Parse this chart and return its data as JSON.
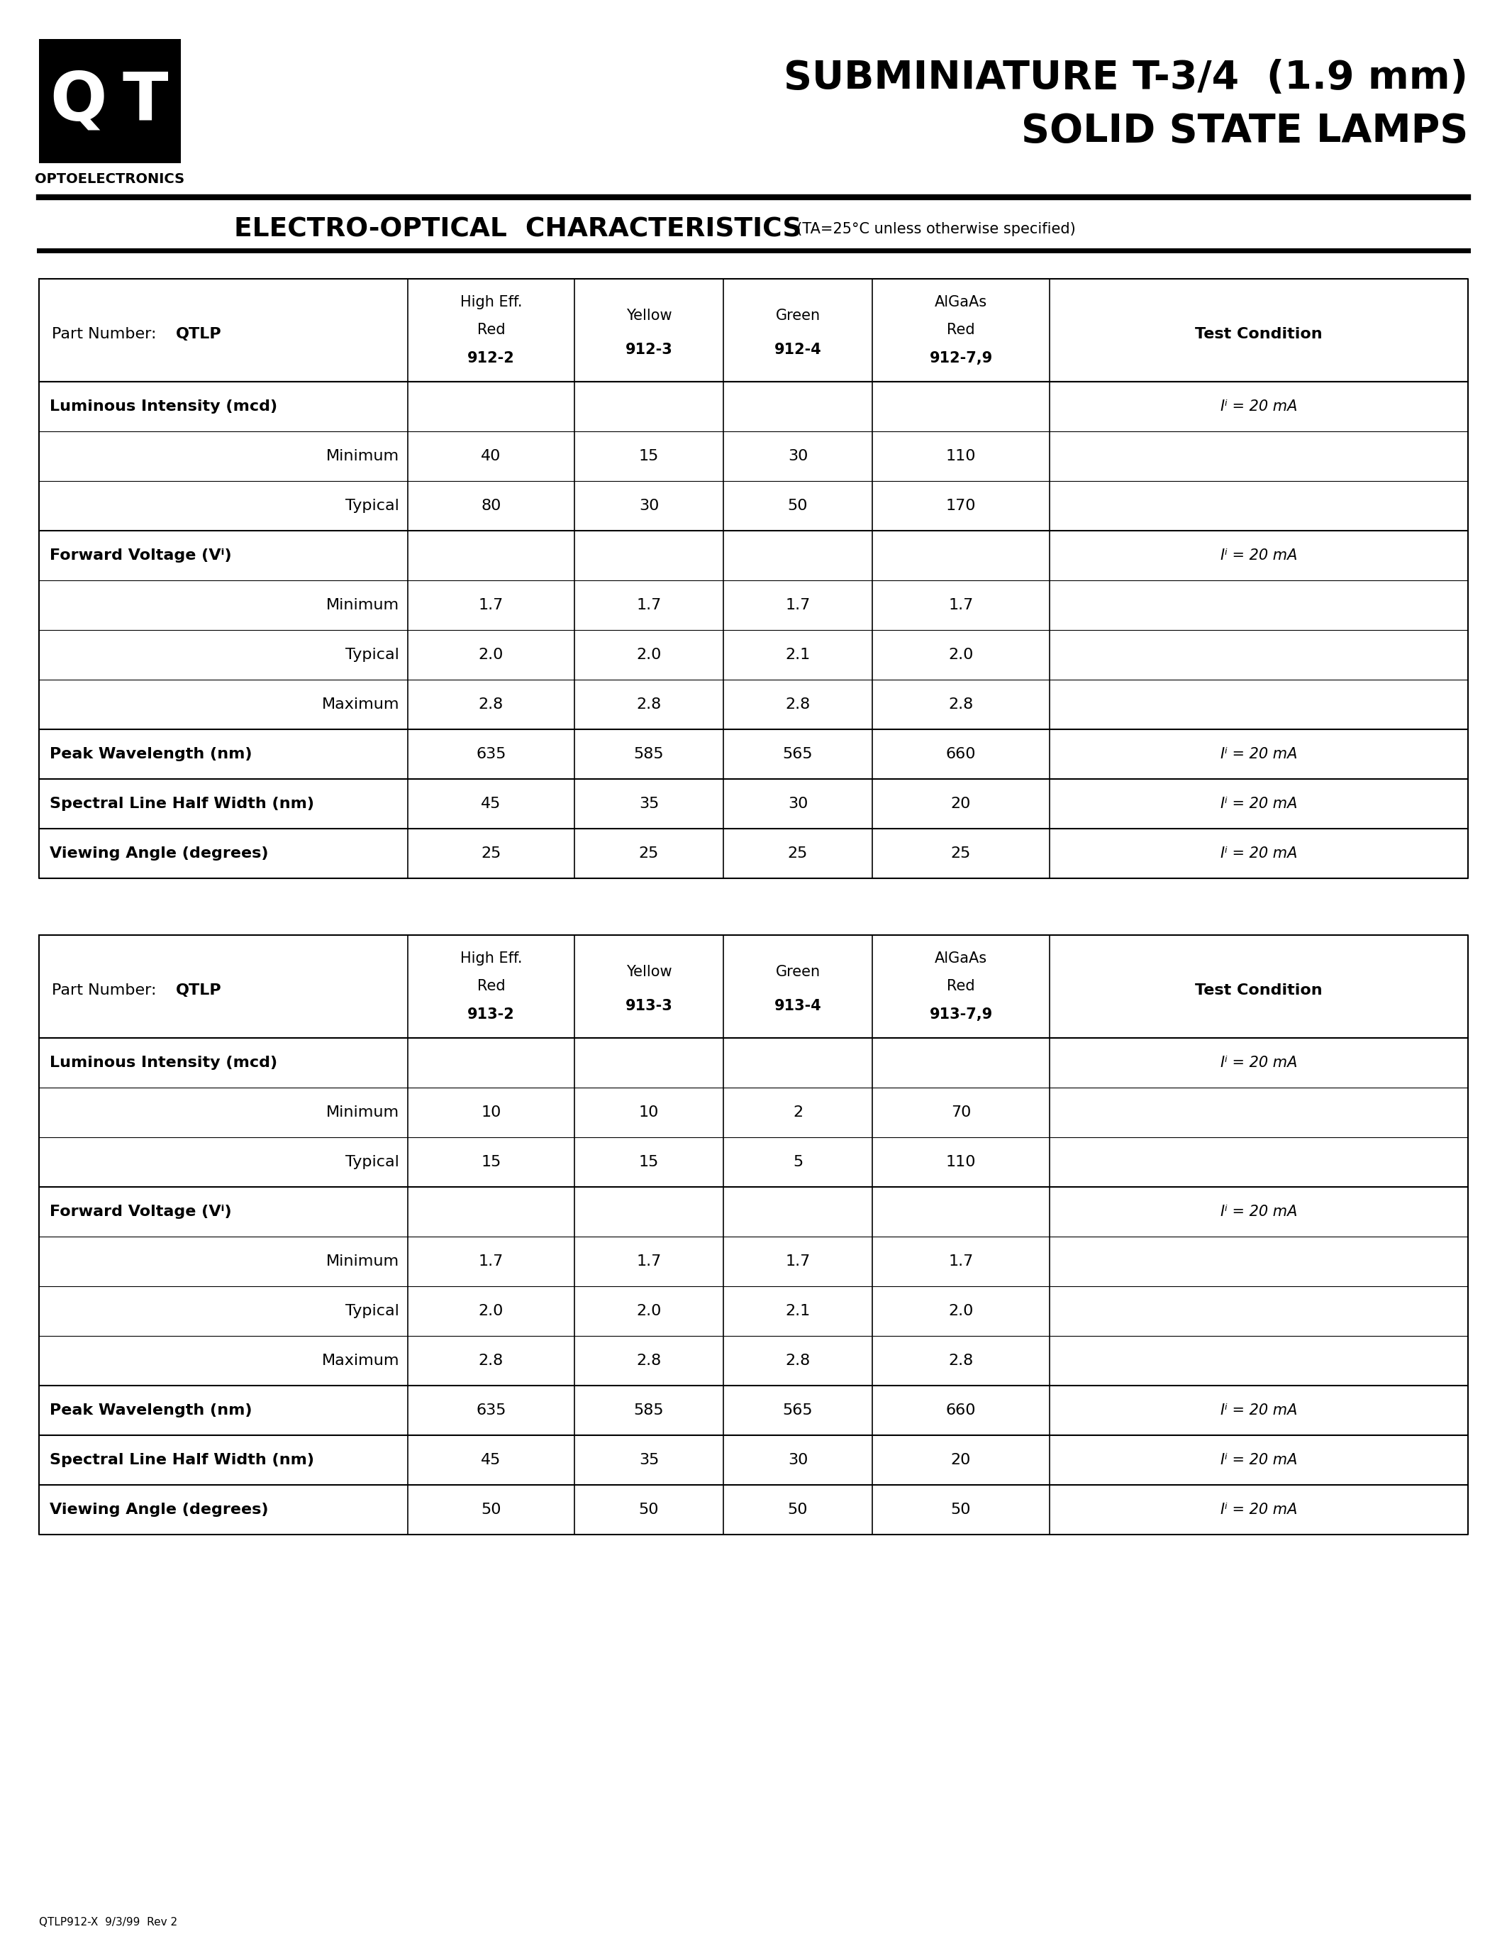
{
  "page_title_line1": "SUBMINIATURE T-3/4  (1.9 mm)",
  "page_title_line2": "SOLID STATE LAMPS",
  "section_title": "ELECTRO-OPTICAL  CHARACTERISTICS",
  "section_subtitle": "  (TA=25°C unless otherwise specified)",
  "optoelectronics_text": "OPTOELECTRONICS",
  "footer_text": "QTLP912-X  9/3/99  Rev 2",
  "table1": {
    "col_headers": [
      [
        "High Eff.",
        "Red",
        "912-2"
      ],
      [
        "Yellow",
        "912-3",
        ""
      ],
      [
        "Green",
        "912-4",
        ""
      ],
      [
        "AlGaAs",
        "Red",
        "912-7,9"
      ],
      [
        "Test Condition",
        "",
        ""
      ]
    ],
    "rows": [
      {
        "label": "Luminous Intensity (mcd)",
        "bold": true,
        "right_align": false,
        "values": [
          "",
          "",
          "",
          "",
          "IF = 20 mA"
        ]
      },
      {
        "label": "Minimum",
        "bold": false,
        "right_align": true,
        "values": [
          "40",
          "15",
          "30",
          "110",
          ""
        ]
      },
      {
        "label": "Typical",
        "bold": false,
        "right_align": true,
        "values": [
          "80",
          "30",
          "50",
          "170",
          ""
        ]
      },
      {
        "label": "Forward Voltage (VF)",
        "bold": true,
        "right_align": false,
        "values": [
          "",
          "",
          "",
          "",
          "IF = 20 mA"
        ]
      },
      {
        "label": "Minimum",
        "bold": false,
        "right_align": true,
        "values": [
          "1.7",
          "1.7",
          "1.7",
          "1.7",
          ""
        ]
      },
      {
        "label": "Typical",
        "bold": false,
        "right_align": true,
        "values": [
          "2.0",
          "2.0",
          "2.1",
          "2.0",
          ""
        ]
      },
      {
        "label": "Maximum",
        "bold": false,
        "right_align": true,
        "values": [
          "2.8",
          "2.8",
          "2.8",
          "2.8",
          ""
        ]
      },
      {
        "label": "Peak Wavelength (nm)",
        "bold": true,
        "right_align": false,
        "values": [
          "635",
          "585",
          "565",
          "660",
          "IF = 20 mA"
        ]
      },
      {
        "label": "Spectral Line Half Width (nm)",
        "bold": true,
        "right_align": false,
        "values": [
          "45",
          "35",
          "30",
          "20",
          "IF = 20 mA"
        ]
      },
      {
        "label": "Viewing Angle (degrees)",
        "bold": true,
        "right_align": false,
        "values": [
          "25",
          "25",
          "25",
          "25",
          "IF = 20 mA"
        ]
      }
    ]
  },
  "table2": {
    "col_headers": [
      [
        "High Eff.",
        "Red",
        "913-2"
      ],
      [
        "Yellow",
        "913-3",
        ""
      ],
      [
        "Green",
        "913-4",
        ""
      ],
      [
        "AlGaAs",
        "Red",
        "913-7,9"
      ],
      [
        "Test Condition",
        "",
        ""
      ]
    ],
    "rows": [
      {
        "label": "Luminous Intensity (mcd)",
        "bold": true,
        "right_align": false,
        "values": [
          "",
          "",
          "",
          "",
          "IF = 20 mA"
        ]
      },
      {
        "label": "Minimum",
        "bold": false,
        "right_align": true,
        "values": [
          "10",
          "10",
          "2",
          "70",
          ""
        ]
      },
      {
        "label": "Typical",
        "bold": false,
        "right_align": true,
        "values": [
          "15",
          "15",
          "5",
          "110",
          ""
        ]
      },
      {
        "label": "Forward Voltage (VF)",
        "bold": true,
        "right_align": false,
        "values": [
          "",
          "",
          "",
          "",
          "IF = 20 mA"
        ]
      },
      {
        "label": "Minimum",
        "bold": false,
        "right_align": true,
        "values": [
          "1.7",
          "1.7",
          "1.7",
          "1.7",
          ""
        ]
      },
      {
        "label": "Typical",
        "bold": false,
        "right_align": true,
        "values": [
          "2.0",
          "2.0",
          "2.1",
          "2.0",
          ""
        ]
      },
      {
        "label": "Maximum",
        "bold": false,
        "right_align": true,
        "values": [
          "2.8",
          "2.8",
          "2.8",
          "2.8",
          ""
        ]
      },
      {
        "label": "Peak Wavelength (nm)",
        "bold": true,
        "right_align": false,
        "values": [
          "635",
          "585",
          "565",
          "660",
          "IF = 20 mA"
        ]
      },
      {
        "label": "Spectral Line Half Width (nm)",
        "bold": true,
        "right_align": false,
        "values": [
          "45",
          "35",
          "30",
          "20",
          "IF = 20 mA"
        ]
      },
      {
        "label": "Viewing Angle (degrees)",
        "bold": true,
        "right_align": false,
        "values": [
          "50",
          "50",
          "50",
          "50",
          "IF = 20 mA"
        ]
      }
    ]
  },
  "background_color": "#ffffff"
}
